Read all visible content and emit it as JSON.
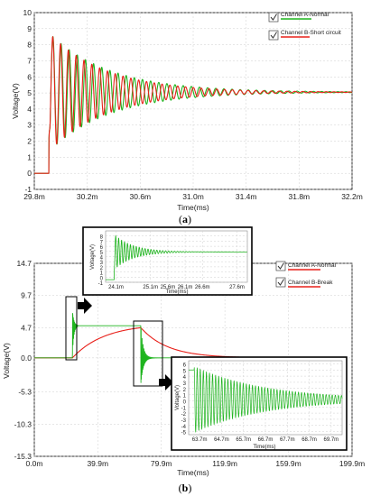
{
  "chart_data": [
    {
      "type": "line",
      "caption": "(a)",
      "xlabel": "Time(ms)",
      "ylabel": "Voltage(V)",
      "x_ticks": [
        "29.8m",
        "30.2m",
        "30.6m",
        "31.0m",
        "31.4m",
        "31.8m",
        "32.2m"
      ],
      "y_ticks": [
        "-1",
        "0",
        "1",
        "2",
        "3",
        "4",
        "5",
        "6",
        "7",
        "8",
        "9",
        "10"
      ],
      "xlim": [
        29.8,
        32.2
      ],
      "ylim": [
        -1,
        10
      ],
      "grid": true,
      "legend": "top-right",
      "series": [
        {
          "name": "Channel A-Normal",
          "color": "#1fb41f",
          "kind": "step_damped",
          "step_time": 29.91,
          "start": 0,
          "final": 5.05,
          "amplitude": 3.7,
          "period": 0.0615,
          "tau": 0.46
        },
        {
          "name": "Channel B-Short circuit",
          "color": "#e8201a",
          "kind": "step_damped",
          "step_time": 29.91,
          "start": 0,
          "final": 5.05,
          "amplitude": 3.7,
          "period": 0.059,
          "tau": 0.43
        }
      ]
    },
    {
      "type": "line",
      "caption": "(b)",
      "xlabel": "Time(ms)",
      "ylabel": "Voltage(V)",
      "x_ticks": [
        "0.0m",
        "39.9m",
        "79.9m",
        "119.9m",
        "159.9m",
        "199.9m"
      ],
      "y_ticks": [
        "14.7",
        "9.7",
        "4.7",
        "0.0",
        "-5.3",
        "-10.3",
        "-15.3"
      ],
      "xlim": [
        0,
        199.9
      ],
      "ylim": [
        -15.3,
        14.7
      ],
      "grid": true,
      "legend": "top-right",
      "series": [
        {
          "name": "Channel A-Normal",
          "color": "#e8201a"
        },
        {
          "name": "Channel B-Break",
          "color": "#1fb41f"
        }
      ],
      "insets": [
        {
          "xlabel": "Time(ms)",
          "ylabel": "Voltage(V)",
          "x_ticks": [
            "24.1m",
            "25.1m",
            "25.6m",
            "26.1m",
            "26.6m",
            "27.6m"
          ],
          "y_ticks": [
            "8",
            "7",
            "6",
            "5",
            "4",
            "3",
            "2",
            "1",
            "0",
            "-1"
          ],
          "xlim": [
            23.8,
            27.9
          ],
          "ylim": [
            -1,
            9
          ]
        },
        {
          "xlabel": "Time(ms)",
          "ylabel": "Voltage(V)",
          "x_ticks": [
            "63.7m",
            "64.7m",
            "65.7m",
            "66.7m",
            "67.7m",
            "68.7m",
            "69.7m"
          ],
          "y_ticks": [
            "6",
            "5",
            "4",
            "3",
            "2",
            "1",
            "0",
            "-1",
            "-2",
            "-3",
            "-4",
            "-5"
          ],
          "xlim": [
            63.2,
            70.2
          ],
          "ylim": [
            -5.5,
            6.5
          ]
        }
      ]
    }
  ]
}
